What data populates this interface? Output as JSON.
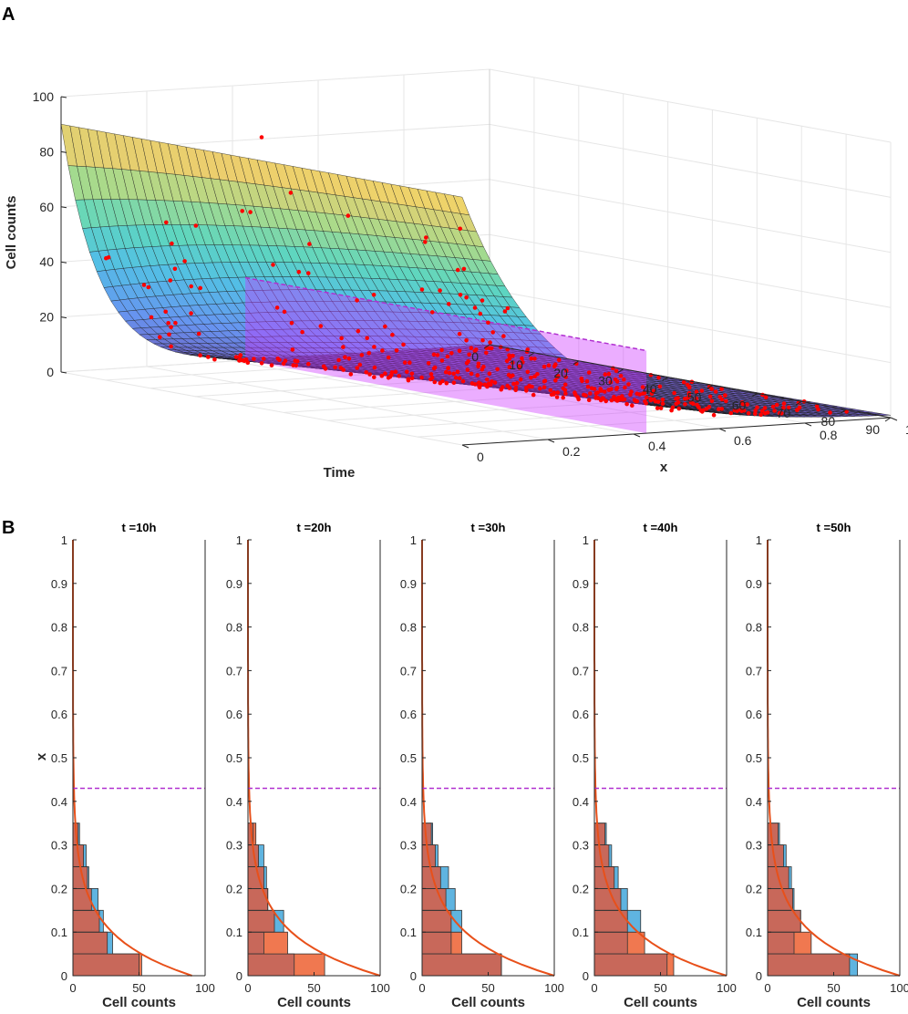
{
  "figure": {
    "panel_a_label": "A",
    "panel_b_label": "B"
  },
  "colors": {
    "scatter": "#ff0000",
    "band": "#cc33ff",
    "band_edge": "#b030d0",
    "hist_model": "#f07850",
    "hist_data": "#5fb4e0",
    "hist_overlap": "#c8685a",
    "curve": "#e8501a",
    "axis": "#262626",
    "grid": "#e6e6e6"
  },
  "chart_data": [
    {
      "id": "A",
      "type": "surface",
      "zlabel": "Cell counts",
      "xlabel": "Time",
      "ylabel": "x",
      "zticks": [
        0,
        20,
        40,
        60,
        80,
        100
      ],
      "time_ticks": [
        0,
        10,
        20,
        30,
        40,
        50,
        60,
        70,
        80,
        90
      ],
      "x_ticks": [
        0,
        0.2,
        0.4,
        0.6,
        0.8,
        1
      ],
      "zlim": [
        0,
        100
      ],
      "time_lim": [
        0,
        90
      ],
      "x_lim": [
        0,
        1
      ],
      "surface_model": "counts = 90 * exp(-x / (0.09 + 0.0014 * time))",
      "threshold_x": 0.43
    },
    {
      "id": "B",
      "type": "histogram-panels",
      "xlabel": "Cell counts",
      "ylabel": "x",
      "xticks": [
        0,
        50,
        100
      ],
      "yticks": [
        0,
        0.1,
        0.2,
        0.3,
        0.4,
        0.5,
        0.6,
        0.7,
        0.8,
        0.9,
        1
      ],
      "xlim": [
        0,
        100
      ],
      "ylim": [
        0,
        1
      ],
      "threshold_x": 0.43,
      "bin_edges": [
        0,
        0.05,
        0.1,
        0.15,
        0.2,
        0.25,
        0.3,
        0.35
      ],
      "panels": [
        {
          "title": "t =10h",
          "model_bins": [
            52,
            26,
            20,
            14,
            11,
            8,
            4
          ],
          "data_bins": [
            50,
            30,
            23,
            19,
            12,
            10,
            5
          ],
          "curve_max": 90
        },
        {
          "title": "t =20h",
          "model_bins": [
            58,
            30,
            20,
            15,
            12,
            8,
            6
          ],
          "data_bins": [
            35,
            12,
            27,
            15,
            14,
            12,
            4
          ],
          "curve_max": 100
        },
        {
          "title": "t =30h",
          "model_bins": [
            60,
            30,
            22,
            18,
            14,
            10,
            7
          ],
          "data_bins": [
            60,
            22,
            30,
            25,
            20,
            12,
            8
          ],
          "curve_max": 100
        },
        {
          "title": "t =40h",
          "model_bins": [
            60,
            38,
            25,
            20,
            15,
            11,
            8
          ],
          "data_bins": [
            55,
            25,
            35,
            25,
            18,
            13,
            9
          ],
          "curve_max": 100
        },
        {
          "title": "t =50h",
          "model_bins": [
            62,
            33,
            25,
            19,
            16,
            12,
            8
          ],
          "data_bins": [
            68,
            20,
            25,
            20,
            18,
            14,
            9
          ],
          "curve_max": 100
        }
      ]
    }
  ]
}
